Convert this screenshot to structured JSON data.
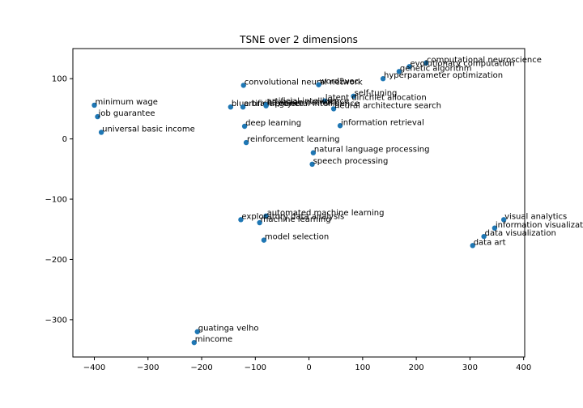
{
  "chart_data": {
    "type": "scatter",
    "title": "TSNE over 2 dimensions",
    "xlabel": "",
    "ylabel": "",
    "xlim": [
      -440,
      402
    ],
    "ylim": [
      -362,
      150
    ],
    "xticks": [
      -400,
      -300,
      -200,
      -100,
      0,
      100,
      200,
      300,
      400
    ],
    "yticks": [
      -300,
      -200,
      -100,
      0,
      100
    ],
    "tick_labels_x": [
      "−400",
      "−300",
      "−200",
      "−100",
      "0",
      "100",
      "200",
      "300",
      "400"
    ],
    "tick_labels_y": [
      "−300",
      "−200",
      "−100",
      "0",
      "100"
    ],
    "grid": false,
    "marker_color": "#1f77b4",
    "points": [
      {
        "label": "computational neuroscience",
        "x": 218,
        "y": 126
      },
      {
        "label": "evolutionary computation",
        "x": 187,
        "y": 120
      },
      {
        "label": "genetic algorithm",
        "x": 168,
        "y": 112
      },
      {
        "label": "hyperparameter optimization",
        "x": 138,
        "y": 100
      },
      {
        "label": "convolutional neural network",
        "x": -122,
        "y": 89
      },
      {
        "label": "word2vec",
        "x": 18,
        "y": 90
      },
      {
        "label": "self-tuning",
        "x": 83,
        "y": 71
      },
      {
        "label": "latent dirichlet allocation",
        "x": 29,
        "y": 63
      },
      {
        "label": "minimum wage",
        "x": -400,
        "y": 56
      },
      {
        "label": "blue brain project",
        "x": -146,
        "y": 53
      },
      {
        "label": "artificial intelligence",
        "x": -80,
        "y": 57
      },
      {
        "label": "artificial general intelligence",
        "x": -123,
        "y": 53
      },
      {
        "label": "bayesian network",
        "x": -80,
        "y": 55
      },
      {
        "label": "neural architecture search",
        "x": 46,
        "y": 50
      },
      {
        "label": "job guarantee",
        "x": -394,
        "y": 37
      },
      {
        "label": "deep learning",
        "x": -120,
        "y": 21
      },
      {
        "label": "information retrieval",
        "x": 58,
        "y": 22
      },
      {
        "label": "universal basic income",
        "x": -387,
        "y": 11
      },
      {
        "label": "reinforcement learning",
        "x": -117,
        "y": -6
      },
      {
        "label": "natural language processing",
        "x": 8,
        "y": -23
      },
      {
        "label": "speech processing",
        "x": 6,
        "y": -42
      },
      {
        "label": "automated machine learning",
        "x": -80,
        "y": -128
      },
      {
        "label": "exploratory data analysis",
        "x": -127,
        "y": -134
      },
      {
        "label": "machine learning",
        "x": -92,
        "y": -139
      },
      {
        "label": "model selection",
        "x": -84,
        "y": -168
      },
      {
        "label": "visual analytics",
        "x": 363,
        "y": -134
      },
      {
        "label": "information visualization",
        "x": 346,
        "y": -148
      },
      {
        "label": "data visualization",
        "x": 326,
        "y": -162
      },
      {
        "label": "data art",
        "x": 305,
        "y": -177
      },
      {
        "label": "guatinga velho",
        "x": -208,
        "y": -320
      },
      {
        "label": "mincome",
        "x": -214,
        "y": -338
      }
    ]
  }
}
